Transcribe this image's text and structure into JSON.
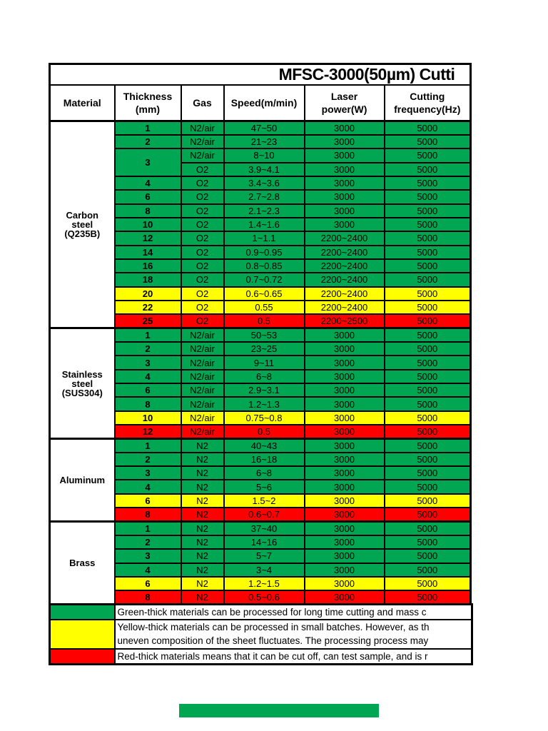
{
  "table": {
    "title": "MFSC-3000(50µm) Cutti",
    "headers": [
      "Material",
      "Thickness\n(mm)",
      "Gas",
      "Speed(m/min)",
      "Laser\npower(W)",
      "Cutting\nfrequency(Hz)"
    ],
    "sections": [
      {
        "material": "Carbon\nsteel\n(Q235B)",
        "rows": [
          {
            "thickness": "1",
            "gas": "N2/air",
            "speed": "47~50",
            "power": "3000",
            "frequency": "5000",
            "status": "green"
          },
          {
            "thickness": "2",
            "gas": "N2/air",
            "speed": "21~23",
            "power": "3000",
            "frequency": "5000",
            "status": "green"
          },
          {
            "thickness": "3",
            "thickness_rowspan": 2,
            "gas": "N2/air",
            "speed": "8~10",
            "power": "3000",
            "frequency": "5000",
            "status": "green"
          },
          {
            "thickness": null,
            "gas": "O2",
            "speed": "3.9~4.1",
            "power": "3000",
            "frequency": "5000",
            "status": "green"
          },
          {
            "thickness": "4",
            "gas": "O2",
            "speed": "3.4~3.6",
            "power": "3000",
            "frequency": "5000",
            "status": "green"
          },
          {
            "thickness": "6",
            "gas": "O2",
            "speed": "2.7~2.8",
            "power": "3000",
            "frequency": "5000",
            "status": "green"
          },
          {
            "thickness": "8",
            "gas": "O2",
            "speed": "2.1~2.3",
            "power": "3000",
            "frequency": "5000",
            "status": "green"
          },
          {
            "thickness": "10",
            "gas": "O2",
            "speed": "1.4~1.6",
            "power": "3000",
            "frequency": "5000",
            "status": "green"
          },
          {
            "thickness": "12",
            "gas": "O2",
            "speed": "1~1.1",
            "power": "2200~2400",
            "frequency": "5000",
            "status": "green"
          },
          {
            "thickness": "14",
            "gas": "O2",
            "speed": "0.9~0.95",
            "power": "2200~2400",
            "frequency": "5000",
            "status": "green"
          },
          {
            "thickness": "16",
            "gas": "O2",
            "speed": "0.8~0.85",
            "power": "2200~2400",
            "frequency": "5000",
            "status": "green"
          },
          {
            "thickness": "18",
            "gas": "O2",
            "speed": "0.7~0.72",
            "power": "2200~2400",
            "frequency": "5000",
            "status": "green"
          },
          {
            "thickness": "20",
            "gas": "O2",
            "speed": "0.6~0.65",
            "power": "2200~2400",
            "frequency": "5000",
            "status": "yellow"
          },
          {
            "thickness": "22",
            "gas": "O2",
            "speed": "0.55",
            "power": "2200~2400",
            "frequency": "5000",
            "status": "yellow"
          },
          {
            "thickness": "25",
            "gas": "O2",
            "speed": "0.5",
            "power": "2200~2500",
            "frequency": "5000",
            "status": "red"
          }
        ]
      },
      {
        "material": "Stainless\nsteel\n(SUS304)",
        "rows": [
          {
            "thickness": "1",
            "gas": "N2/air",
            "speed": "50~53",
            "power": "3000",
            "frequency": "5000",
            "status": "green"
          },
          {
            "thickness": "2",
            "gas": "N2/air",
            "speed": "23~25",
            "power": "3000",
            "frequency": "5000",
            "status": "green"
          },
          {
            "thickness": "3",
            "gas": "N2/air",
            "speed": "9~11",
            "power": "3000",
            "frequency": "5000",
            "status": "green"
          },
          {
            "thickness": "4",
            "gas": "N2/air",
            "speed": "6~8",
            "power": "3000",
            "frequency": "5000",
            "status": "green"
          },
          {
            "thickness": "6",
            "gas": "N2/air",
            "speed": "2.9~3.1",
            "power": "3000",
            "frequency": "5000",
            "status": "green"
          },
          {
            "thickness": "8",
            "gas": "N2/air",
            "speed": "1.2~1.3",
            "power": "3000",
            "frequency": "5000",
            "status": "green"
          },
          {
            "thickness": "10",
            "gas": "N2/air",
            "speed": "0.75~0.8",
            "power": "3000",
            "frequency": "5000",
            "status": "yellow"
          },
          {
            "thickness": "12",
            "gas": "N2/air",
            "speed": "0.5",
            "power": "3000",
            "frequency": "5000",
            "status": "red"
          }
        ]
      },
      {
        "material": "Aluminum",
        "rows": [
          {
            "thickness": "1",
            "gas": "N2",
            "speed": "40~43",
            "power": "3000",
            "frequency": "5000",
            "status": "green"
          },
          {
            "thickness": "2",
            "gas": "N2",
            "speed": "16~18",
            "power": "3000",
            "frequency": "5000",
            "status": "green"
          },
          {
            "thickness": "3",
            "gas": "N2",
            "speed": "6~8",
            "power": "3000",
            "frequency": "5000",
            "status": "green"
          },
          {
            "thickness": "4",
            "gas": "N2",
            "speed": "5~6",
            "power": "3000",
            "frequency": "5000",
            "status": "green"
          },
          {
            "thickness": "6",
            "gas": "N2",
            "speed": "1.5~2",
            "power": "3000",
            "frequency": "5000",
            "status": "yellow"
          },
          {
            "thickness": "8",
            "gas": "N2",
            "speed": "0.6~0.7",
            "power": "3000",
            "frequency": "5000",
            "status": "red"
          }
        ]
      },
      {
        "material": "Brass",
        "rows": [
          {
            "thickness": "1",
            "gas": "N2",
            "speed": "37~40",
            "power": "3000",
            "frequency": "5000",
            "status": "green"
          },
          {
            "thickness": "2",
            "gas": "N2",
            "speed": "14~16",
            "power": "3000",
            "frequency": "5000",
            "status": "green"
          },
          {
            "thickness": "3",
            "gas": "N2",
            "speed": "5~7",
            "power": "3000",
            "frequency": "5000",
            "status": "green"
          },
          {
            "thickness": "4",
            "gas": "N2",
            "speed": "3~4",
            "power": "3000",
            "frequency": "5000",
            "status": "green"
          },
          {
            "thickness": "6",
            "gas": "N2",
            "speed": "1.2~1.5",
            "power": "3000",
            "frequency": "5000",
            "status": "yellow"
          },
          {
            "thickness": "8",
            "gas": "N2",
            "speed": "0.5~0.6",
            "power": "3000",
            "frequency": "5000",
            "status": "red"
          }
        ]
      }
    ]
  },
  "legend": [
    {
      "color": "green",
      "lines": [
        "Green-thick materials can be processed for long time cutting and mass c"
      ]
    },
    {
      "color": "yellow",
      "lines": [
        "Yellow-thick materials can be processed in small batches. However, as th",
        "uneven composition of the sheet fluctuates. The processing process may"
      ]
    },
    {
      "color": "red",
      "lines": [
        "Red-thick materials means that it can be cut off, can test sample, and is r"
      ]
    }
  ],
  "colors": {
    "green": "#00A651",
    "yellow": "#FFFF00",
    "red": "#FF0000",
    "border": "#000000",
    "page_background": "#FFFFFF"
  }
}
